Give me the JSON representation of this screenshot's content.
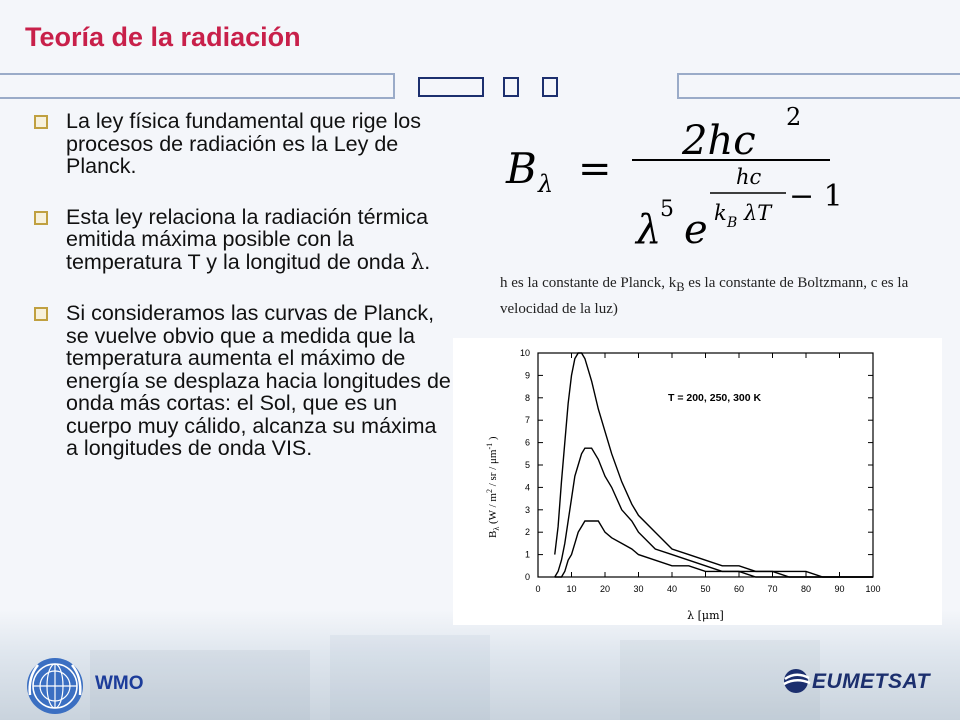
{
  "title": "Teoría de la radiación",
  "bullets": [
    {
      "text": "La ley física fundamental que rige los procesos de radiación es la Ley de Planck."
    },
    {
      "text_before": "Esta ley relaciona la radiación térmica emitida máxima posible con la temperatura T y la longitud de onda ",
      "symbol": "λ",
      "text_after": "."
    },
    {
      "text": "Si consideramos las curvas de Planck, se vuelve obvio que a medida que la temperatura aumenta el máximo de energía se desplaza hacia longitudes de onda más cortas: el Sol, que es un cuerpo muy cálido, alcanza su máxima a longitudes de onda VIS."
    }
  ],
  "formula": {
    "lhs": "B",
    "lhs_sub": "λ",
    "equals": "=",
    "numerator": "2hc",
    "numerator_exp": "2",
    "lambda": "λ",
    "lambda_exp": "5",
    "e": "e",
    "exp_num": "hc",
    "exp_den_k": "k",
    "exp_den_sub": "B",
    "exp_den_rest": "λT",
    "minus_one": "− 1"
  },
  "caption": {
    "part1": "h es la constante de Planck, k",
    "sub": "B",
    "part2": " es la constante de Boltzmann, c es la velocidad de la luz)"
  },
  "chart_data": {
    "type": "line",
    "title": "",
    "annotation": "T = 200, 250, 300 K",
    "xlabel": "λ [μm]",
    "ylabel": "B_λ (W / m² / sr / μm⁻¹ )",
    "ylabel_parts": {
      "b": "B",
      "b_sub": "λ",
      "rest1": " (W / m",
      "m_exp": "2",
      "rest2": " / sr / μm",
      "um_exp": "-1",
      "rest3": " )"
    },
    "xlim": [
      0,
      100
    ],
    "ylim": [
      0,
      10
    ],
    "x_ticks": [
      0,
      10,
      20,
      30,
      40,
      50,
      60,
      70,
      80,
      90,
      100
    ],
    "y_ticks": [
      0,
      1,
      2,
      3,
      4,
      5,
      6,
      7,
      8,
      9,
      10
    ],
    "grid": false,
    "x": [
      5,
      6,
      7,
      8,
      9,
      10,
      11,
      12,
      13,
      14,
      15,
      16,
      18,
      20,
      22,
      25,
      28,
      30,
      35,
      40,
      45,
      50,
      55,
      60,
      65,
      70,
      75,
      80,
      85,
      90,
      95,
      100
    ],
    "series": [
      {
        "values": [
          0.0,
          0.0,
          0.0,
          0.01,
          0.03,
          0.04,
          0.06,
          0.08,
          0.09,
          0.1,
          0.1,
          0.1,
          0.1,
          0.08,
          0.07,
          0.06,
          0.05,
          0.04,
          0.03,
          0.02,
          0.02,
          0.01,
          0.01,
          0.01,
          0.0,
          0.0,
          0.0,
          0.0,
          0.0,
          0.0,
          0.0,
          0.0
        ]
      },
      {
        "values": [
          0.0,
          0.01,
          0.03,
          0.06,
          0.1,
          0.14,
          0.18,
          0.2,
          0.22,
          0.23,
          0.23,
          0.23,
          0.21,
          0.18,
          0.16,
          0.12,
          0.1,
          0.08,
          0.05,
          0.04,
          0.03,
          0.02,
          0.01,
          0.01,
          0.01,
          0.01,
          0.0,
          0.0,
          0.0,
          0.0,
          0.0,
          0.0
        ]
      },
      {
        "values": [
          0.04,
          0.09,
          0.17,
          0.24,
          0.31,
          0.36,
          0.39,
          0.4,
          0.4,
          0.39,
          0.37,
          0.35,
          0.3,
          0.26,
          0.22,
          0.17,
          0.13,
          0.11,
          0.08,
          0.05,
          0.04,
          0.03,
          0.02,
          0.02,
          0.01,
          0.01,
          0.01,
          0.01,
          0.0,
          0.0,
          0.0,
          0.0
        ]
      }
    ],
    "series_scale": 25
  },
  "footer": {
    "wmo": "WMO",
    "eumetsat": "EUMETSAT"
  },
  "colors": {
    "title": "#c8204a",
    "accent": "#1c2f6e",
    "wmo": "#1c3c9a"
  },
  "icons": {
    "bullet": "square-bullet-icon",
    "wmo_logo": "wmo-emblem-icon",
    "eumetsat_logo": "eumetsat-swoosh-icon"
  }
}
